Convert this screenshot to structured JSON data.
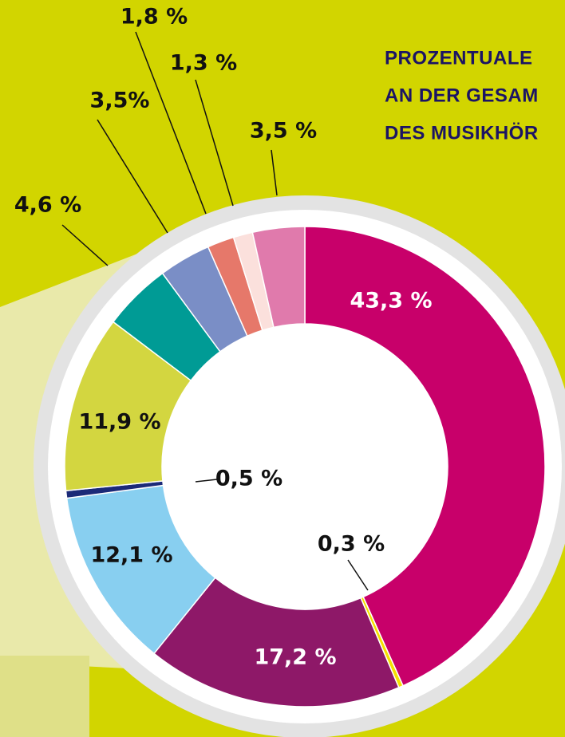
{
  "chart_data": {
    "type": "donut",
    "title_lines": [
      "PROZENTUALE",
      "AN DER GESAM",
      "DES MUSIKHÖR"
    ],
    "values": [
      43.3,
      0.3,
      17.2,
      12.1,
      0.5,
      11.9,
      4.6,
      3.5,
      1.8,
      1.3,
      3.5
    ],
    "value_labels": [
      "43,3 %",
      "0,3 %",
      "17,2 %",
      "12,1 %",
      "0,5 %",
      "11,9 %",
      "4,6 %",
      "3,5%",
      "1,8 %",
      "1,3 %",
      "3,5 %"
    ],
    "colors": [
      "#c8006a",
      "#f4e000",
      "#8e1868",
      "#88cff0",
      "#1b2a78",
      "#d3d640",
      "#009b95",
      "#7a8ec6",
      "#e6786a",
      "#fbe0dc",
      "#e07aac"
    ]
  }
}
